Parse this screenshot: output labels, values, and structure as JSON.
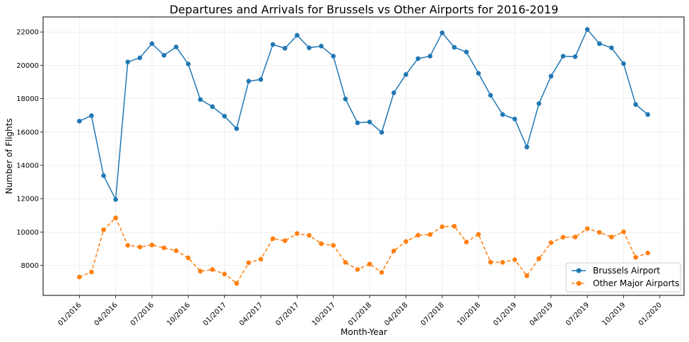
{
  "chart_data": {
    "type": "line",
    "title": "Departures and Arrivals for Brussels vs Other Airports for 2016-2019",
    "xlabel": "Month-Year",
    "ylabel": "Number of Flights",
    "ylim": [
      6200,
      22900
    ],
    "xlim": [
      "2015-10",
      "2020-03"
    ],
    "yticks": [
      8000,
      10000,
      12000,
      14000,
      16000,
      18000,
      20000,
      22000
    ],
    "xticks": [
      "01/2016",
      "04/2016",
      "07/2016",
      "10/2016",
      "01/2017",
      "04/2017",
      "07/2017",
      "10/2017",
      "01/2018",
      "04/2018",
      "07/2018",
      "10/2018",
      "01/2019",
      "04/2019",
      "07/2019",
      "10/2019",
      "01/2020"
    ],
    "grid": true,
    "legend_position": "bottom-right",
    "x": [
      "2016-01",
      "2016-02",
      "2016-03",
      "2016-04",
      "2016-05",
      "2016-06",
      "2016-07",
      "2016-08",
      "2016-09",
      "2016-10",
      "2016-11",
      "2016-12",
      "2017-01",
      "2017-02",
      "2017-03",
      "2017-04",
      "2017-05",
      "2017-06",
      "2017-07",
      "2017-08",
      "2017-09",
      "2017-10",
      "2017-11",
      "2017-12",
      "2018-01",
      "2018-02",
      "2018-03",
      "2018-04",
      "2018-05",
      "2018-06",
      "2018-07",
      "2018-08",
      "2018-09",
      "2018-10",
      "2018-11",
      "2018-12",
      "2019-01",
      "2019-02",
      "2019-03",
      "2019-04",
      "2019-05",
      "2019-06",
      "2019-07",
      "2019-08",
      "2019-09",
      "2019-10",
      "2019-11",
      "2019-12"
    ],
    "series": [
      {
        "name": "Brussels Airport",
        "color": "#1f77b4",
        "style": "solid",
        "values": [
          16650,
          16980,
          13380,
          11950,
          20200,
          20450,
          21300,
          20600,
          21100,
          20080,
          17950,
          17520,
          16950,
          16200,
          19050,
          19150,
          21250,
          21020,
          21800,
          21050,
          21150,
          20550,
          17980,
          16550,
          16600,
          15980,
          18350,
          19450,
          20400,
          20550,
          21950,
          21080,
          20800,
          19520,
          18200,
          17050,
          16780,
          15100,
          17700,
          19350,
          20550,
          20520,
          22150,
          21300,
          21050,
          20100,
          17650,
          17050
        ]
      },
      {
        "name": "Other Major Airports",
        "color": "#ff7f0e",
        "style": "dashed",
        "values": [
          7300,
          7600,
          10130,
          10850,
          9200,
          9100,
          9220,
          9050,
          8880,
          8450,
          7650,
          7750,
          7480,
          6920,
          8160,
          8370,
          9600,
          9480,
          9910,
          9800,
          9300,
          9200,
          8180,
          7750,
          8080,
          7580,
          8870,
          9430,
          9810,
          9850,
          10320,
          10350,
          9400,
          9860,
          8190,
          8180,
          8340,
          7380,
          8400,
          9360,
          9690,
          9700,
          10200,
          9980,
          9700,
          10010,
          8480,
          8740
        ]
      }
    ]
  }
}
